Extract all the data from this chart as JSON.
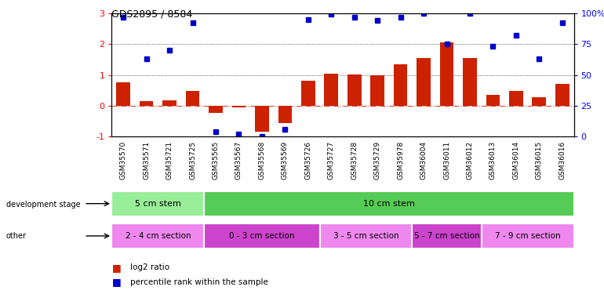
{
  "title": "GDS2895 / 8584",
  "samples": [
    "GSM35570",
    "GSM35571",
    "GSM35721",
    "GSM35725",
    "GSM35565",
    "GSM35567",
    "GSM35568",
    "GSM35569",
    "GSM35726",
    "GSM35727",
    "GSM35728",
    "GSM35729",
    "GSM35978",
    "GSM36004",
    "GSM36011",
    "GSM36012",
    "GSM36013",
    "GSM36014",
    "GSM36015",
    "GSM36016"
  ],
  "log2_ratio": [
    0.75,
    0.15,
    0.18,
    0.48,
    -0.22,
    -0.05,
    -0.85,
    -0.55,
    0.82,
    1.05,
    1.02,
    1.0,
    1.35,
    1.55,
    2.05,
    1.55,
    0.35,
    0.48,
    0.27,
    0.72
  ],
  "percentile": [
    97,
    63,
    70,
    92,
    4,
    2,
    0,
    6,
    95,
    99,
    97,
    94,
    97,
    100,
    75,
    100,
    73,
    82,
    63,
    92
  ],
  "dev_stage_groups": [
    {
      "label": "5 cm stem",
      "start": 0,
      "end": 4,
      "color": "#99ee99"
    },
    {
      "label": "10 cm stem",
      "start": 4,
      "end": 20,
      "color": "#55cc55"
    }
  ],
  "other_groups": [
    {
      "label": "2 - 4 cm section",
      "start": 0,
      "end": 4,
      "color": "#ee88ee"
    },
    {
      "label": "0 - 3 cm section",
      "start": 4,
      "end": 9,
      "color": "#cc44cc"
    },
    {
      "label": "3 - 5 cm section",
      "start": 9,
      "end": 13,
      "color": "#ee88ee"
    },
    {
      "label": "5 - 7 cm section",
      "start": 13,
      "end": 16,
      "color": "#cc44cc"
    },
    {
      "label": "7 - 9 cm section",
      "start": 16,
      "end": 20,
      "color": "#ee88ee"
    }
  ],
  "bar_color": "#cc2200",
  "dot_color": "#0000cc",
  "ylim_left": [
    -1,
    3
  ],
  "ylim_right": [
    0,
    100
  ],
  "left_ticks": [
    -1,
    0,
    1,
    2,
    3
  ],
  "left_tick_labels": [
    "-1",
    "0",
    "1",
    "2",
    "3"
  ],
  "right_ticks": [
    0,
    25,
    50,
    75,
    100
  ],
  "right_tick_labels": [
    "0",
    "25",
    "50",
    "75",
    "100%"
  ]
}
